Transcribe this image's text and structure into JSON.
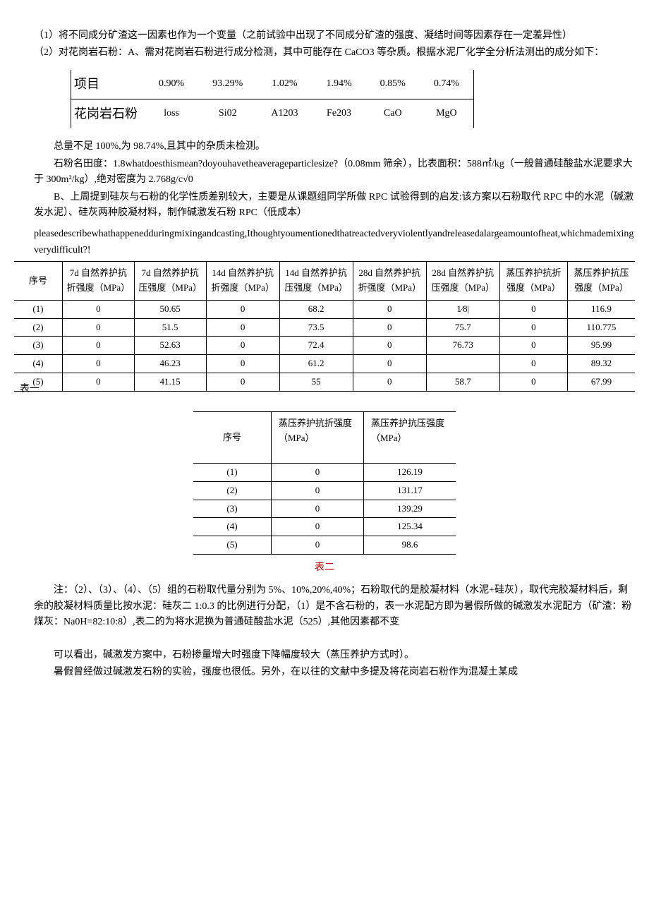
{
  "p1": "（1）将不同成分矿渣这一因素也作为一个变量（之前试验中出现了不同成分矿渣的强度、凝结时间等因素存在一定差异性）",
  "p2": "（2）对花岗岩石粉：A、需对花岗岩石粉进行成分检测，其中可能存在 CaCO3 等杂质。根据水泥厂化学全分析法测出的成分如下：",
  "comp": {
    "header_label": "项目",
    "row_label": "花岗岩石粉",
    "values": [
      "0.90%",
      "93.29%",
      "1.02%",
      "1.94%",
      "0.85%",
      "0.74%"
    ],
    "names": [
      "loss",
      "Si02",
      "A1203",
      "Fe203",
      "CaO",
      "MgO"
    ]
  },
  "p3": "总量不足 100%,为 98.74%,且其中的杂质未检测。",
  "p4": "石粉名田度：1.8whatdoesthismean?doyouhavetheaverageparticlesize?（0.08mm 筛余），比表面积：588㎡/kg（一般普通硅酸盐水泥要求大于 300m²/kg）,绝对密度为 2.768g/c√0",
  "p5": "B、上周提到硅灰与石粉的化学性质差别较大，主要是从课题组同学所做 RPC 试验得到的启发:该方案以石粉取代 RPC 中的水泥（碱激发水泥）、硅灰两种胶凝材料，制作碱激发石粉 RPC（低成本）",
  "p6": "pleasedescribewhathappenedduringmixingandcasting,Ithoughtyoumentionedthatreactedveryviolentlyandreleasedalargeamountofheat,whichmademixingverydifficult?!",
  "t1": {
    "headers": [
      "序号",
      "7d 自然养护抗折强度（MPa）",
      "7d 自然养护抗压强度（MPa）",
      "14d 自然养护抗折强度（MPa）",
      "14d 自然养护抗压强度（MPa）",
      "28d 自然养护抗折强度（MPa）",
      "28d 自然养护抗压强度（MPa）",
      "蒸压养护抗折强度（MPa）",
      "蒸压养护抗压强度（MPa）"
    ],
    "rows": [
      [
        "(1)",
        "0",
        "50.65",
        "0",
        "68.2",
        "0",
        "1⁄8|",
        "0",
        "116.9"
      ],
      [
        "(2)",
        "0",
        "51.5",
        "0",
        "73.5",
        "0",
        "75.7",
        "0",
        "110.775"
      ],
      [
        "(3)",
        "0",
        "52.63",
        "0",
        "72.4",
        "0",
        "76.73",
        "0",
        "95.99"
      ],
      [
        "(4)",
        "0",
        "46.23",
        "0",
        "61.2",
        "0",
        "",
        "0",
        "89.32"
      ],
      [
        "(5)",
        "0",
        "41.15",
        "0",
        "55",
        "0",
        "58.7",
        "0",
        "67.99"
      ]
    ],
    "label": "表一"
  },
  "t2": {
    "headers": [
      "序号",
      "蒸压养护抗折强度（MPa）",
      "蒸压养护抗压强度（MPa）"
    ],
    "rows": [
      [
        "(1)",
        "0",
        "126.19"
      ],
      [
        "(2)",
        "0",
        "131.17"
      ],
      [
        "(3)",
        "0",
        "139.29"
      ],
      [
        "(4)",
        "0",
        "125.34"
      ],
      [
        "(5)",
        "0",
        "98.6"
      ]
    ],
    "label": "表二"
  },
  "p7": "注：（2）、（3）、（4）、（5）组的石粉取代量分别为 5%、10%,20%,40%；石粉取代的是胶凝材料（水泥+硅灰），取代完胶凝材料后，剩余的胶凝材料质量比按水泥：硅灰二 1:0.3 的比例进行分配，（1）是不含石粉的，表一水泥配方即为暑假所做的碱激发水泥配方（矿渣：粉煤灰：Na0H=82:10:8）,表二的为将水泥换为普通硅酸盐水泥（525）,其他因素都不变",
  "p8": "可以看出，碱激发方案中，石粉掺量增大时强度下降幅度较大（蒸压养护方式时）。",
  "p9": "暑假曾经做过碱激发石粉的实验，强度也很低。另外，在以往的文献中多提及将花岗岩石粉作为混凝土某成"
}
